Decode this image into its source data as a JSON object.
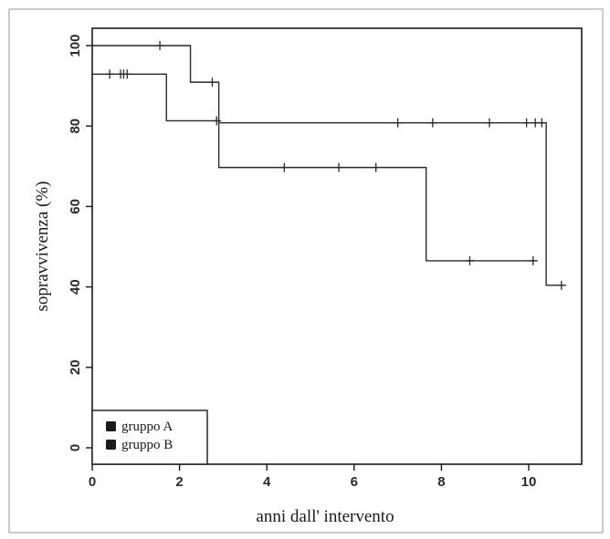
{
  "chart_data": {
    "type": "line",
    "title": "",
    "xlabel": "anni dall' intervento",
    "ylabel": "sopravvivenza (%)",
    "xlim": [
      0,
      11.2
    ],
    "ylim": [
      -4,
      104
    ],
    "x_ticks": [
      "0",
      "2",
      "4",
      "6",
      "8",
      "10"
    ],
    "y_ticks": [
      "0",
      "20",
      "40",
      "60",
      "80",
      "100"
    ],
    "grid": false,
    "legend_position": "bottom-left",
    "colors": {
      "line": "#2a2a2a",
      "frame": "#1a1a1a",
      "legend_marker": "#1a1a1a"
    },
    "series": [
      {
        "name": "gruppo A",
        "steps": [
          {
            "x": 0,
            "y": 100
          },
          {
            "x": 2.25,
            "y": 90.9
          },
          {
            "x": 2.9,
            "y": 80.8
          },
          {
            "x": 10.4,
            "y": 40.4
          },
          {
            "x": 10.8,
            "y": 40.4
          }
        ],
        "censored": [
          {
            "x": 1.55,
            "y": 100
          },
          {
            "x": 2.75,
            "y": 90.9
          },
          {
            "x": 7.0,
            "y": 80.8
          },
          {
            "x": 7.8,
            "y": 80.8
          },
          {
            "x": 9.1,
            "y": 80.8
          },
          {
            "x": 9.95,
            "y": 80.8
          },
          {
            "x": 10.15,
            "y": 80.8
          },
          {
            "x": 10.3,
            "y": 80.8
          },
          {
            "x": 10.75,
            "y": 40.4
          }
        ]
      },
      {
        "name": "gruppo B",
        "steps": [
          {
            "x": 0,
            "y": 92.9
          },
          {
            "x": 1.7,
            "y": 81.3
          },
          {
            "x": 2.9,
            "y": 69.7
          },
          {
            "x": 7.65,
            "y": 46.5
          },
          {
            "x": 10.15,
            "y": 46.5
          }
        ],
        "censored": [
          {
            "x": 0.4,
            "y": 92.9
          },
          {
            "x": 0.65,
            "y": 92.9
          },
          {
            "x": 0.72,
            "y": 92.9
          },
          {
            "x": 0.8,
            "y": 92.9
          },
          {
            "x": 2.85,
            "y": 81.3
          },
          {
            "x": 4.4,
            "y": 69.7
          },
          {
            "x": 5.65,
            "y": 69.7
          },
          {
            "x": 6.5,
            "y": 69.7
          },
          {
            "x": 8.65,
            "y": 46.5
          },
          {
            "x": 10.1,
            "y": 46.5
          }
        ]
      }
    ]
  }
}
